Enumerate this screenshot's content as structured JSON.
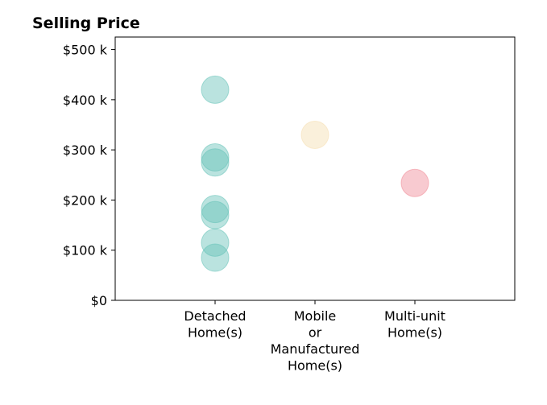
{
  "chart_data": {
    "type": "scatter",
    "title": "Selling Price",
    "xlabel": "",
    "ylabel": "",
    "categories": [
      "Detached\nHome(s)",
      "Mobile\nor\nManufactured\nHome(s)",
      "Multi-unit\nHome(s)"
    ],
    "ylim": [
      0,
      525000
    ],
    "yticks": [
      {
        "value": 0,
        "label": "$0"
      },
      {
        "value": 100000,
        "label": "$100 k"
      },
      {
        "value": 200000,
        "label": "$200 k"
      },
      {
        "value": 300000,
        "label": "$300 k"
      },
      {
        "value": 400000,
        "label": "$400 k"
      },
      {
        "value": 500000,
        "label": "$500 k"
      }
    ],
    "grid": false,
    "series": [
      {
        "category": 0,
        "color": "#66c2b8",
        "values": [
          420000,
          285000,
          275000,
          182000,
          170000,
          115000,
          85000
        ]
      },
      {
        "category": 1,
        "color": "#f5deb0",
        "values": [
          330000
        ]
      },
      {
        "category": 2,
        "color": "#f08a96",
        "values": [
          234000
        ]
      }
    ]
  }
}
